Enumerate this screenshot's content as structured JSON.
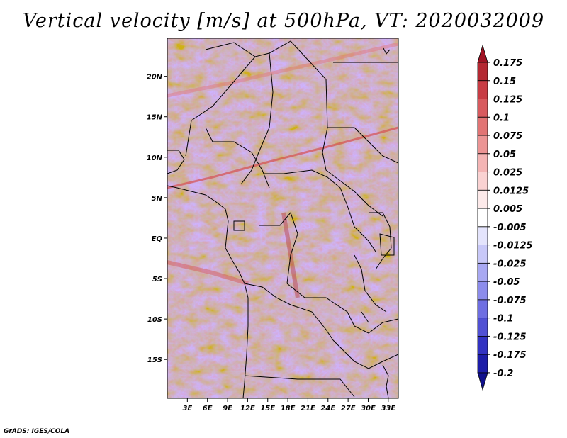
{
  "title": "Vertical velocity [m/s] at 500hPa, VT: 2020032009",
  "credit": "GrADS: IGES/COLA",
  "map": {
    "lat_labels": [
      "20N",
      "15N",
      "10N",
      "5N",
      "EQ",
      "5S",
      "10S",
      "15S"
    ],
    "lat_values": [
      20,
      15,
      10,
      5,
      0,
      -5,
      -10,
      -15
    ],
    "lon_labels": [
      "3E",
      "6E",
      "9E",
      "12E",
      "15E",
      "18E",
      "21E",
      "24E",
      "27E",
      "30E",
      "33E"
    ],
    "lon_values": [
      3,
      6,
      9,
      12,
      15,
      18,
      21,
      24,
      27,
      30,
      33
    ],
    "lon_range": [
      0,
      34.5
    ],
    "lat_range": [
      -19.8,
      24.7
    ]
  },
  "colorbar": {
    "labels": [
      "0.175",
      "0.15",
      "0.125",
      "0.1",
      "0.075",
      "0.05",
      "0.025",
      "0.0125",
      "0.005",
      "-0.005",
      "-0.0125",
      "-0.025",
      "-0.05",
      "-0.075",
      "-0.1",
      "-0.125",
      "-0.175",
      "-0.2"
    ],
    "colors": [
      "#a01424",
      "#b42832",
      "#c83c44",
      "#d85a5e",
      "#e27474",
      "#ec9494",
      "#f4b4b4",
      "#fad2d2",
      "#fdeaea",
      "#ffffff",
      "#e4e4fc",
      "#c8c8f8",
      "#a8a8f2",
      "#8c8cec",
      "#6e6ee2",
      "#5050d4",
      "#3232c2",
      "#1c1ca8",
      "#10108c"
    ]
  }
}
